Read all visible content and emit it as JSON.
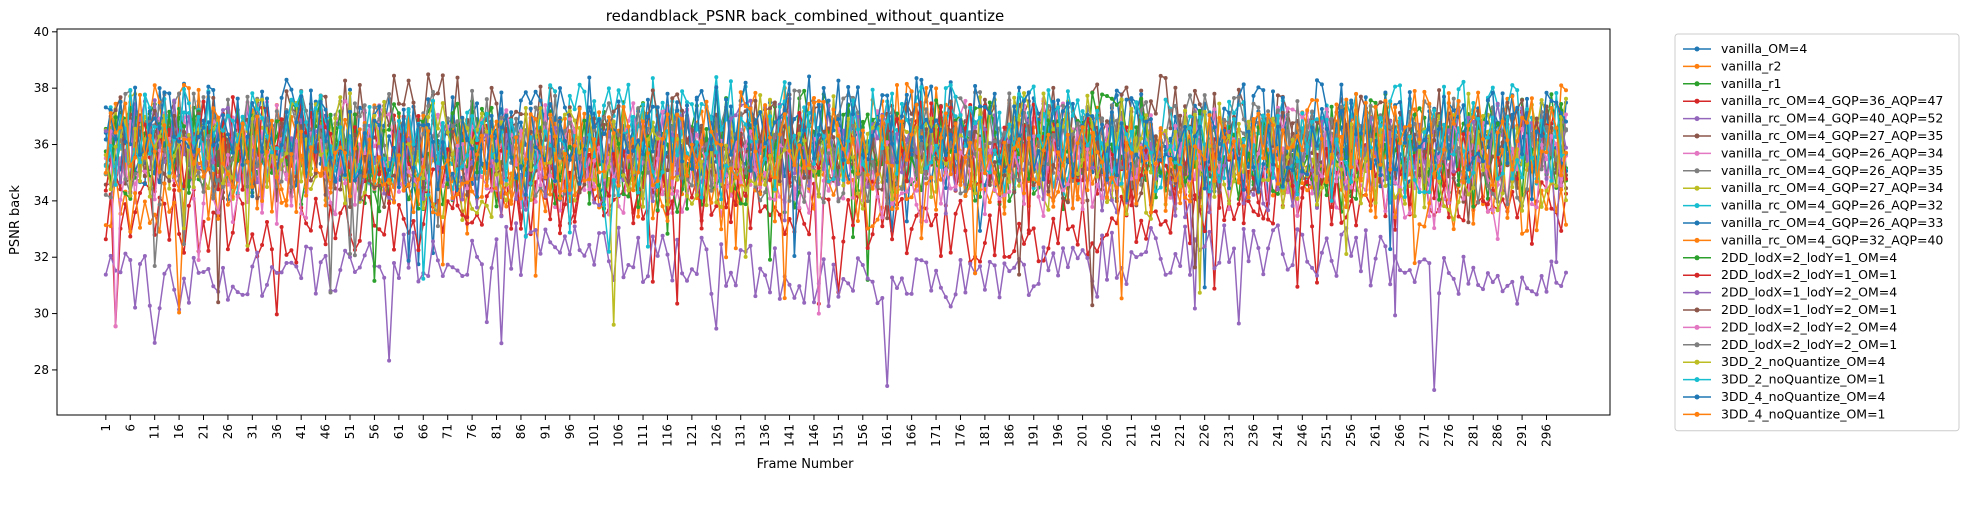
{
  "chart_data": {
    "type": "line",
    "title": "redandblack_PSNR back_combined_without_quantize",
    "xlabel": "Frame Number",
    "ylabel": "PSNR back",
    "xlim": [
      -9,
      309
    ],
    "ylim": [
      26.4,
      40.1
    ],
    "x_tick_labels": [
      "1",
      "6",
      "11",
      "16",
      "21",
      "26",
      "31",
      "36",
      "41",
      "46",
      "51",
      "56",
      "61",
      "66",
      "71",
      "76",
      "81",
      "86",
      "91",
      "96",
      "101",
      "106",
      "111",
      "116",
      "121",
      "126",
      "131",
      "136",
      "141",
      "146",
      "151",
      "156",
      "161",
      "166",
      "171",
      "176",
      "181",
      "186",
      "191",
      "196",
      "201",
      "206",
      "211",
      "216",
      "221",
      "226",
      "231",
      "236",
      "241",
      "246",
      "251",
      "256",
      "261",
      "266",
      "271",
      "276",
      "281",
      "286",
      "291",
      "296"
    ],
    "y_ticks": [
      28,
      30,
      32,
      34,
      36,
      38,
      40
    ],
    "grid": false,
    "legend_placement": "outside right",
    "frames": {
      "start": 1,
      "end": 300
    },
    "series": [
      {
        "name": "vanilla_OM=4",
        "color": "#1f77b4",
        "base": 36.2,
        "amp": 1.6
      },
      {
        "name": "vanilla_r2",
        "color": "#ff7f0e",
        "base": 35.9,
        "amp": 1.7
      },
      {
        "name": "vanilla_r1",
        "color": "#2ca02c",
        "base": 35.8,
        "amp": 1.6
      },
      {
        "name": "vanilla_rc_OM=4_GQP=36_AQP=47",
        "color": "#d62728",
        "base": 33.6,
        "amp": 1.2
      },
      {
        "name": "vanilla_rc_OM=4_GQP=40_AQP=52",
        "color": "#9467bd",
        "base": 31.7,
        "amp": 1.0
      },
      {
        "name": "vanilla_rc_OM=4_GQP=27_AQP=35",
        "color": "#8c564b",
        "base": 36.4,
        "amp": 1.5
      },
      {
        "name": "vanilla_rc_OM=4_GQP=26_AQP=34",
        "color": "#e377c2",
        "base": 35.5,
        "amp": 1.6
      },
      {
        "name": "vanilla_rc_OM=4_GQP=26_AQP=35",
        "color": "#7f7f7f",
        "base": 36.1,
        "amp": 1.5
      },
      {
        "name": "vanilla_rc_OM=4_GQP=27_AQP=34",
        "color": "#bcbd22",
        "base": 35.6,
        "amp": 1.7
      },
      {
        "name": "vanilla_rc_OM=4_GQP=26_AQP=32",
        "color": "#17becf",
        "base": 36.3,
        "amp": 1.6
      },
      {
        "name": "vanilla_rc_OM=4_GQP=26_AQP=33",
        "color": "#1f77b4",
        "base": 36.2,
        "amp": 1.6
      },
      {
        "name": "vanilla_rc_OM=4_GQP=32_AQP=40",
        "color": "#ff7f0e",
        "base": 35.0,
        "amp": 1.6
      },
      {
        "name": "2DD_lodX=2_lodY=1_OM=4",
        "color": "#2ca02c",
        "base": 35.7,
        "amp": 1.6
      },
      {
        "name": "2DD_lodX=2_lodY=1_OM=1",
        "color": "#d62728",
        "base": 35.4,
        "amp": 1.7
      },
      {
        "name": "2DD_lodX=1_lodY=2_OM=4",
        "color": "#9467bd",
        "base": 35.5,
        "amp": 1.6
      },
      {
        "name": "2DD_lodX=1_lodY=2_OM=1",
        "color": "#8c564b",
        "base": 35.8,
        "amp": 1.6
      },
      {
        "name": "2DD_lodX=2_lodY=2_OM=4",
        "color": "#e377c2",
        "base": 35.3,
        "amp": 1.6
      },
      {
        "name": "2DD_lodX=2_lodY=2_OM=1",
        "color": "#7f7f7f",
        "base": 35.9,
        "amp": 1.5
      },
      {
        "name": "3DD_2_noQuantize_OM=4",
        "color": "#bcbd22",
        "base": 35.6,
        "amp": 1.7
      },
      {
        "name": "3DD_2_noQuantize_OM=1",
        "color": "#17becf",
        "base": 36.0,
        "amp": 1.6
      },
      {
        "name": "3DD_4_noQuantize_OM=4",
        "color": "#1f77b4",
        "base": 36.3,
        "amp": 1.6
      },
      {
        "name": "3DD_4_noQuantize_OM=1",
        "color": "#ff7f0e",
        "base": 35.7,
        "amp": 1.7
      }
    ]
  }
}
